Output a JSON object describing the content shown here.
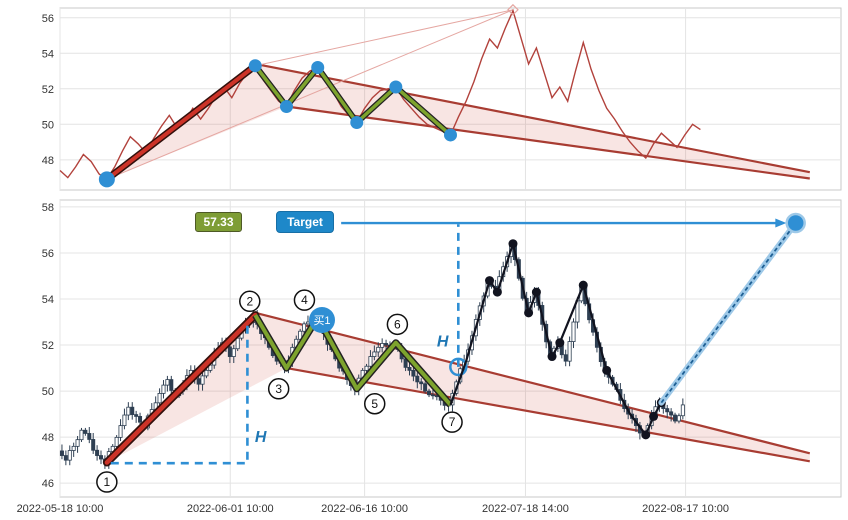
{
  "figure": {
    "bg": "#ffffff",
    "grid_color": "#e4e4e4",
    "border_color": "#c9c9c9",
    "tick_color": "#333333"
  },
  "x_axis": {
    "ticks": [
      {
        "label": "2022-05-18 10:00",
        "t": 0
      },
      {
        "label": "2022-06-01 10:00",
        "t": 21.8
      },
      {
        "label": "2022-06-16 10:00",
        "t": 39
      },
      {
        "label": "2022-07-18 14:00",
        "t": 59.6
      },
      {
        "label": "2022-08-17 10:00",
        "t": 80.1
      }
    ]
  },
  "price": [
    47.4,
    47.0,
    47.6,
    48.3,
    47.9,
    47.2,
    46.9,
    47.6,
    48.5,
    49.3,
    48.9,
    48.4,
    49.2,
    49.9,
    50.5,
    49.8,
    50.2,
    50.9,
    50.3,
    50.9,
    51.6,
    52.1,
    51.5,
    52.3,
    52.9,
    53.3,
    52.5,
    51.9,
    51.3,
    51.0,
    51.9,
    52.6,
    53.0,
    53.2,
    52.5,
    51.8,
    51.0,
    50.5,
    50.1,
    50.9,
    51.5,
    51.9,
    52.0,
    52.1,
    51.4,
    50.9,
    50.4,
    50.0,
    49.8,
    49.6,
    49.4,
    50.4,
    51.3,
    52.4,
    53.7,
    54.8,
    54.3,
    55.4,
    56.4,
    54.9,
    53.4,
    54.3,
    52.9,
    51.5,
    52.1,
    51.3,
    53.0,
    54.6,
    53.1,
    51.9,
    50.9,
    50.3,
    49.6,
    49.0,
    48.5,
    48.1,
    48.9,
    49.5,
    49.1,
    48.7,
    49.4,
    50.0,
    49.7
  ],
  "chart_data": {
    "type": "candlestick",
    "top": {
      "type": "line",
      "y_ticks": [
        48,
        50,
        52,
        54,
        56
      ],
      "y_range": [
        46.3,
        56.55
      ],
      "x_range_t": [
        0,
        100
      ],
      "grid": true,
      "series": "price"
    },
    "bottom": {
      "type": "candlestick",
      "y_ticks": [
        46,
        48,
        50,
        52,
        54,
        56,
        58
      ],
      "y_range": [
        45.4,
        58.3
      ],
      "x_range_t": [
        0,
        100
      ],
      "grid": true,
      "series": "price",
      "candles_end_t": 80,
      "swing_line": [
        [
          50,
          49.4
        ],
        [
          52,
          51.3
        ],
        [
          55,
          54.8
        ],
        [
          56,
          54.3
        ],
        [
          58,
          56.4
        ],
        [
          60,
          53.4
        ],
        [
          61,
          54.3
        ],
        [
          63,
          51.5
        ],
        [
          64,
          52.1
        ],
        [
          67,
          54.6
        ],
        [
          70,
          50.9
        ],
        [
          73,
          49.0
        ],
        [
          75,
          48.1
        ],
        [
          76,
          48.9
        ],
        [
          77,
          49.5
        ]
      ],
      "swing_dots": [
        [
          55,
          54.8
        ],
        [
          56,
          54.3
        ],
        [
          58,
          56.4
        ],
        [
          60,
          53.4
        ],
        [
          61,
          54.3
        ],
        [
          63,
          51.5
        ],
        [
          64,
          52.1
        ],
        [
          67,
          54.6
        ],
        [
          70,
          50.9
        ],
        [
          75,
          48.1
        ],
        [
          76,
          48.9
        ],
        [
          77,
          49.5
        ]
      ],
      "projection": {
        "from": [
          77,
          49.5
        ],
        "to": [
          94.2,
          57.3
        ]
      },
      "target": {
        "t": 94.2,
        "v": 57.3
      }
    }
  },
  "annotations": {
    "pivots": [
      {
        "n": "1",
        "t": 6,
        "v": 46.9,
        "lt": 6,
        "lv": 46.05
      },
      {
        "n": "2",
        "t": 25,
        "v": 53.3,
        "lt": 24.3,
        "lv": 53.9
      },
      {
        "n": "3",
        "t": 29,
        "v": 51.0,
        "lt": 28,
        "lv": 50.1
      },
      {
        "n": "4",
        "t": 33,
        "v": 53.2,
        "lt": 31.3,
        "lv": 53.95
      },
      {
        "n": "5",
        "t": 38,
        "v": 50.1,
        "lt": 40.3,
        "lv": 49.45
      },
      {
        "n": "6",
        "t": 43,
        "v": 52.1,
        "lt": 43.2,
        "lv": 52.9
      },
      {
        "n": "7",
        "t": 50,
        "v": 49.4,
        "lt": 50.2,
        "lv": 48.65
      }
    ],
    "pole": [
      [
        6,
        46.9
      ],
      [
        25,
        53.3
      ]
    ],
    "flag": [
      [
        25,
        53.3
      ],
      [
        29,
        51.0
      ],
      [
        33,
        53.2
      ],
      [
        38,
        50.1
      ],
      [
        43,
        52.1
      ],
      [
        50,
        49.4
      ]
    ],
    "wedge_upper": [
      [
        25,
        53.4
      ],
      [
        96,
        47.3
      ]
    ],
    "wedge_lower": [
      [
        29,
        51.0
      ],
      [
        96,
        46.95
      ]
    ],
    "fill_pole": [
      [
        6,
        46.9
      ],
      [
        25,
        53.3
      ],
      [
        29,
        51.0
      ]
    ],
    "fill_wedge": [
      [
        25,
        53.4
      ],
      [
        96,
        47.3
      ],
      [
        96,
        46.95
      ],
      [
        29,
        51.0
      ]
    ],
    "top_thin_lines": [
      [
        [
          6,
          46.9
        ],
        [
          58,
          56.45
        ]
      ],
      [
        [
          25,
          53.3
        ],
        [
          58,
          56.45
        ]
      ]
    ],
    "top_peak_marker": {
      "t": 58,
      "v": 56.45
    },
    "buy_label": {
      "text": "买1"
    },
    "h_labels": [
      {
        "text": "H",
        "t": 25.7,
        "v": 48.0
      },
      {
        "text": "H",
        "t": 49.0,
        "v": 52.15
      }
    ],
    "dashed_path": [
      [
        6.5,
        46.87
      ],
      [
        24,
        46.87
      ],
      [
        24,
        52.9
      ]
    ],
    "dashed_vertical": [
      [
        51,
        51.05
      ],
      [
        51,
        57.25
      ]
    ],
    "h_circle": {
      "t": 51,
      "v": 51.05
    },
    "value_box": {
      "text": "57.33"
    },
    "target_box": {
      "text": "Target"
    },
    "target_arrow": {
      "from_t": 36,
      "to_t": 93,
      "v": 57.3
    }
  },
  "colors": {
    "price_line": "#b2423c",
    "pole": "#cc3328",
    "pole_edge": "#33100c",
    "flag_green": "#7da32d",
    "flag_edge": "#222222",
    "wedge": "#a83c32",
    "wedge_fill": "rgba(204,72,60,0.14)",
    "thin_line": "#e5a7a2",
    "blue": "#2f8fd4",
    "blue_dark": "#1f77b4",
    "candle": "#2e3f52",
    "swing": "#11131f",
    "proj_outer": "#9ec9e8",
    "proj_inner": "#1d5f94"
  }
}
